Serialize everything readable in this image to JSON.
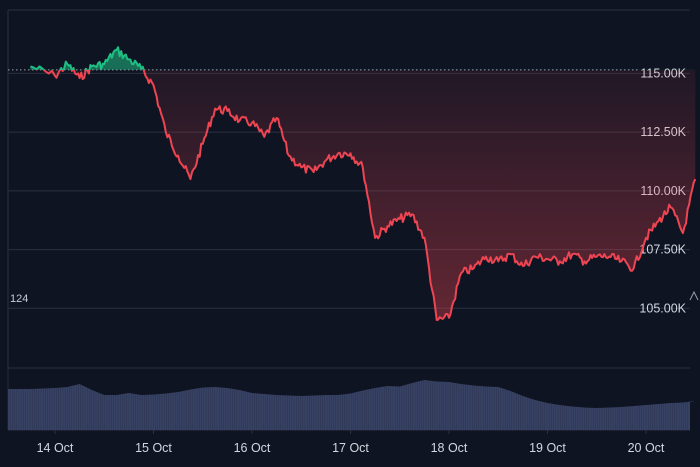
{
  "chart_data": {
    "type": "area",
    "y_ticks": [
      "115.00K",
      "112.50K",
      "110.00K",
      "107.50K",
      "105.00K"
    ],
    "y_tick_values": [
      115000,
      112500,
      110000,
      107500,
      105000
    ],
    "ylim": [
      102500,
      117700
    ],
    "x_ticks": [
      "14 Oct",
      "15 Oct",
      "16 Oct",
      "17 Oct",
      "18 Oct",
      "19 Oct",
      "20 Oct"
    ],
    "reference_line": 115150,
    "left_marker": "124",
    "grid": true,
    "colors": {
      "background": "#0f1422",
      "down_line": "#ef4552",
      "up_line": "#1fbf84",
      "volume": "#3b4568",
      "grid": "#2a3040"
    },
    "series": [
      {
        "x": [
          "2025-10-13 18:00",
          "2025-10-14 00:00",
          "2025-10-14 03:00",
          "2025-10-14 06:00",
          "2025-10-14 09:00",
          "2025-10-14 12:00",
          "2025-10-14 15:00",
          "2025-10-14 18:00",
          "2025-10-14 21:00",
          "2025-10-15 00:00",
          "2025-10-15 03:00",
          "2025-10-15 06:00",
          "2025-10-15 09:00",
          "2025-10-15 12:00",
          "2025-10-15 15:00",
          "2025-10-15 18:00",
          "2025-10-15 21:00",
          "2025-10-16 00:00",
          "2025-10-16 03:00",
          "2025-10-16 06:00",
          "2025-10-16 09:00",
          "2025-10-16 12:00",
          "2025-10-16 15:00",
          "2025-10-16 18:00",
          "2025-10-16 21:00",
          "2025-10-17 00:00",
          "2025-10-17 03:00",
          "2025-10-17 06:00",
          "2025-10-17 09:00",
          "2025-10-17 12:00",
          "2025-10-17 15:00",
          "2025-10-17 18:00",
          "2025-10-17 21:00",
          "2025-10-18 00:00",
          "2025-10-18 03:00",
          "2025-10-18 06:00",
          "2025-10-18 09:00",
          "2025-10-18 12:00",
          "2025-10-18 15:00",
          "2025-10-18 18:00",
          "2025-10-18 21:00",
          "2025-10-19 00:00",
          "2025-10-19 03:00",
          "2025-10-19 06:00",
          "2025-10-19 09:00",
          "2025-10-19 12:00",
          "2025-10-19 15:00",
          "2025-10-19 18:00",
          "2025-10-19 21:00",
          "2025-10-20 00:00",
          "2025-10-20 03:00",
          "2025-10-20 06:00",
          "2025-10-20 09:00",
          "2025-10-20 12:00"
        ],
        "y": [
          115300,
          114900,
          115400,
          114800,
          115300,
          115400,
          116000,
          115600,
          115200,
          114500,
          112500,
          111500,
          110500,
          112000,
          113500,
          113400,
          113000,
          112900,
          112300,
          113100,
          111500,
          111000,
          110800,
          111300,
          111600,
          111600,
          111000,
          108000,
          108500,
          108800,
          109000,
          108000,
          104500,
          104600,
          106500,
          106700,
          107200,
          107000,
          107300,
          106800,
          107200,
          107100,
          107000,
          107300,
          107000,
          107200,
          107200,
          107000,
          106700,
          108000,
          108700,
          109300,
          108200,
          110500
        ],
        "volume": [
          0.82,
          0.84,
          0.86,
          0.92,
          0.8,
          0.7,
          0.7,
          0.74,
          0.7,
          0.71,
          0.73,
          0.76,
          0.81,
          0.85,
          0.86,
          0.84,
          0.8,
          0.74,
          0.72,
          0.7,
          0.69,
          0.68,
          0.69,
          0.7,
          0.7,
          0.73,
          0.79,
          0.84,
          0.88,
          0.87,
          0.94,
          1.0,
          0.97,
          0.96,
          0.92,
          0.89,
          0.87,
          0.86,
          0.78,
          0.68,
          0.6,
          0.54,
          0.5,
          0.47,
          0.45,
          0.44,
          0.45,
          0.46,
          0.48,
          0.5,
          0.52,
          0.54,
          0.55,
          0.58
        ]
      }
    ]
  }
}
